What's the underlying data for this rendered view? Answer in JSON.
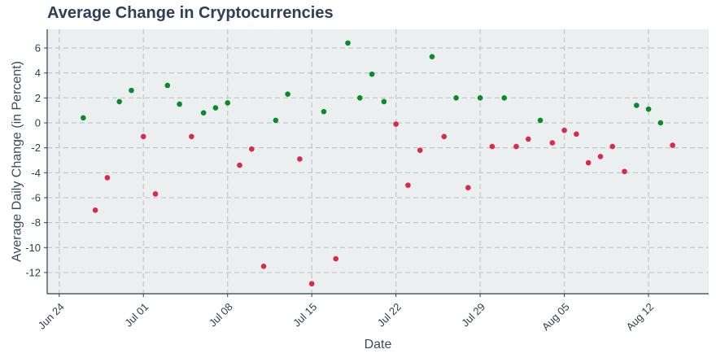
{
  "chart_data": {
    "type": "scatter",
    "title": "Average Change in Cryptocurrencies",
    "xlabel": "Date",
    "ylabel": "Average Daily Change (in Percent)",
    "x_axis_type": "date",
    "xlim": [
      "2024-06-23",
      "2024-08-17"
    ],
    "ylim": [
      -13.7,
      7.5
    ],
    "x_ticks": [
      "2024-06-24",
      "2024-07-01",
      "2024-07-08",
      "2024-07-15",
      "2024-07-22",
      "2024-07-29",
      "2024-08-05",
      "2024-08-12"
    ],
    "x_tick_labels": [
      "Jun 24",
      "Jul 01",
      "Jul 08",
      "Jul 15",
      "Jul 22",
      "Jul 29",
      "Aug 05",
      "Aug 12"
    ],
    "y_ticks": [
      6,
      4,
      2,
      0,
      -2,
      -4,
      -6,
      -8,
      -10,
      -12
    ],
    "y_tick_labels": [
      "6",
      "4",
      "2",
      "0",
      "-2",
      "-4",
      "-6",
      "-8",
      "-10",
      "-12"
    ],
    "grid": true,
    "colors": {
      "positive": "#0a8a2a",
      "negative": "#d92b45",
      "plot_bg": "#ebeff0",
      "grid": "#c3c6c8",
      "axis": "#2e3e50"
    },
    "points": [
      {
        "x": "2024-06-26",
        "y": 0.4
      },
      {
        "x": "2024-06-27",
        "y": -7.0
      },
      {
        "x": "2024-06-28",
        "y": -4.4
      },
      {
        "x": "2024-06-29",
        "y": 1.7
      },
      {
        "x": "2024-06-30",
        "y": 2.6
      },
      {
        "x": "2024-07-01",
        "y": -1.1
      },
      {
        "x": "2024-07-02",
        "y": -5.7
      },
      {
        "x": "2024-07-03",
        "y": 3.0
      },
      {
        "x": "2024-07-04",
        "y": 1.5
      },
      {
        "x": "2024-07-05",
        "y": -1.1
      },
      {
        "x": "2024-07-06",
        "y": 0.8
      },
      {
        "x": "2024-07-07",
        "y": 1.2
      },
      {
        "x": "2024-07-08",
        "y": 1.6
      },
      {
        "x": "2024-07-09",
        "y": -3.4
      },
      {
        "x": "2024-07-10",
        "y": -2.1
      },
      {
        "x": "2024-07-11",
        "y": -11.5
      },
      {
        "x": "2024-07-12",
        "y": 0.2
      },
      {
        "x": "2024-07-13",
        "y": 2.3
      },
      {
        "x": "2024-07-14",
        "y": -2.9
      },
      {
        "x": "2024-07-15",
        "y": -12.9
      },
      {
        "x": "2024-07-16",
        "y": 0.9
      },
      {
        "x": "2024-07-17",
        "y": -10.9
      },
      {
        "x": "2024-07-18",
        "y": 6.4
      },
      {
        "x": "2024-07-19",
        "y": 2.0
      },
      {
        "x": "2024-07-20",
        "y": 3.9
      },
      {
        "x": "2024-07-21",
        "y": 1.7
      },
      {
        "x": "2024-07-22",
        "y": -0.1
      },
      {
        "x": "2024-07-23",
        "y": -5.0
      },
      {
        "x": "2024-07-24",
        "y": -2.2
      },
      {
        "x": "2024-07-25",
        "y": 5.3
      },
      {
        "x": "2024-07-26",
        "y": -1.1
      },
      {
        "x": "2024-07-27",
        "y": 2.0
      },
      {
        "x": "2024-07-28",
        "y": -5.2
      },
      {
        "x": "2024-07-29",
        "y": 2.0
      },
      {
        "x": "2024-07-30",
        "y": -1.9
      },
      {
        "x": "2024-07-31",
        "y": 2.0
      },
      {
        "x": "2024-08-01",
        "y": -1.9
      },
      {
        "x": "2024-08-02",
        "y": -1.3
      },
      {
        "x": "2024-08-03",
        "y": 0.2
      },
      {
        "x": "2024-08-04",
        "y": -1.6
      },
      {
        "x": "2024-08-05",
        "y": -0.6
      },
      {
        "x": "2024-08-06",
        "y": -0.9
      },
      {
        "x": "2024-08-07",
        "y": -3.2
      },
      {
        "x": "2024-08-08",
        "y": -2.7
      },
      {
        "x": "2024-08-09",
        "y": -1.9
      },
      {
        "x": "2024-08-10",
        "y": -3.9
      },
      {
        "x": "2024-08-11",
        "y": 1.4
      },
      {
        "x": "2024-08-12",
        "y": 1.1
      },
      {
        "x": "2024-08-13",
        "y": 0.0
      },
      {
        "x": "2024-08-14",
        "y": -1.8
      }
    ]
  }
}
